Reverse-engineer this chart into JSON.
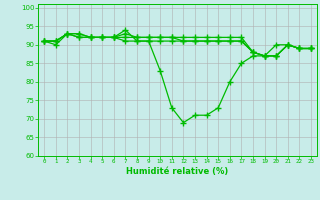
{
  "xlabel": "Humidité relative (%)",
  "xlim": [
    -0.5,
    23.5
  ],
  "ylim": [
    60,
    101
  ],
  "yticks": [
    60,
    65,
    70,
    75,
    80,
    85,
    90,
    95,
    100
  ],
  "xticks": [
    0,
    1,
    2,
    3,
    4,
    5,
    6,
    7,
    8,
    9,
    10,
    11,
    12,
    13,
    14,
    15,
    16,
    17,
    18,
    19,
    20,
    21,
    22,
    23
  ],
  "background_color": "#c8ece9",
  "grid_color": "#b0b0b0",
  "line_color": "#00bb00",
  "lines": [
    [
      91,
      90,
      93,
      93,
      92,
      92,
      92,
      91,
      91,
      91,
      91,
      91,
      91,
      91,
      91,
      91,
      91,
      91,
      88,
      87,
      87,
      90,
      89,
      89
    ],
    [
      91,
      91,
      93,
      92,
      92,
      92,
      92,
      94,
      91,
      91,
      83,
      73,
      69,
      71,
      71,
      73,
      80,
      85,
      87,
      87,
      90,
      90,
      89,
      89
    ],
    [
      91,
      91,
      93,
      92,
      92,
      92,
      92,
      93,
      92,
      92,
      92,
      92,
      91,
      91,
      91,
      91,
      91,
      91,
      88,
      87,
      87,
      90,
      89,
      89
    ],
    [
      91,
      91,
      93,
      93,
      92,
      92,
      92,
      92,
      92,
      92,
      92,
      92,
      92,
      92,
      92,
      92,
      92,
      92,
      88,
      87,
      87,
      90,
      89,
      89
    ]
  ]
}
